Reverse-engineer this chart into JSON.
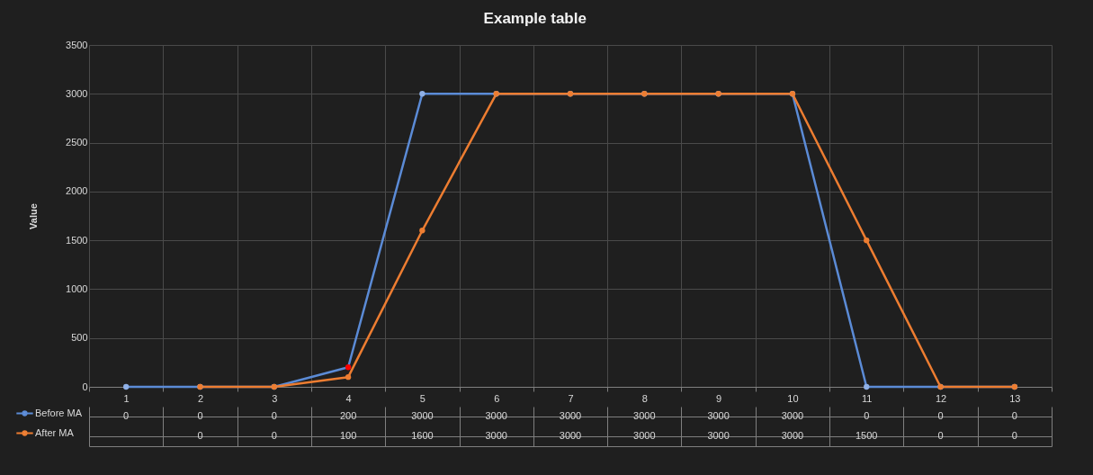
{
  "chart_data": {
    "type": "line",
    "title": "Example table",
    "ylabel": "Value",
    "categories": [
      "1",
      "2",
      "3",
      "4",
      "5",
      "6",
      "7",
      "8",
      "9",
      "10",
      "11",
      "12",
      "13"
    ],
    "series": [
      {
        "name": "Before MA",
        "color": "#5b8bd6",
        "colors": [
          "#8fb0e6",
          "#8fb0e6",
          "#8fb0e6",
          "#ff0000",
          "#8fb0e6",
          "#8fb0e6",
          "#8fb0e6",
          "#8fb0e6",
          "#8fb0e6",
          "#8fb0e6",
          "#8fb0e6",
          "#8fb0e6",
          "#8fb0e6"
        ],
        "values": [
          0,
          0,
          0,
          200,
          3000,
          3000,
          3000,
          3000,
          3000,
          3000,
          0,
          0,
          0
        ]
      },
      {
        "name": "After MA",
        "color": "#ed7d31",
        "values": [
          null,
          0,
          0,
          100,
          1600,
          3000,
          3000,
          3000,
          3000,
          3000,
          1500,
          0,
          0
        ]
      }
    ],
    "ylim": [
      0,
      3500
    ],
    "yticks": [
      0,
      500,
      1000,
      1500,
      2000,
      2500,
      3000,
      3500
    ],
    "grid": true,
    "marker": "circle",
    "line_style": "solid",
    "data_labels": true,
    "legend": "bottom left"
  }
}
